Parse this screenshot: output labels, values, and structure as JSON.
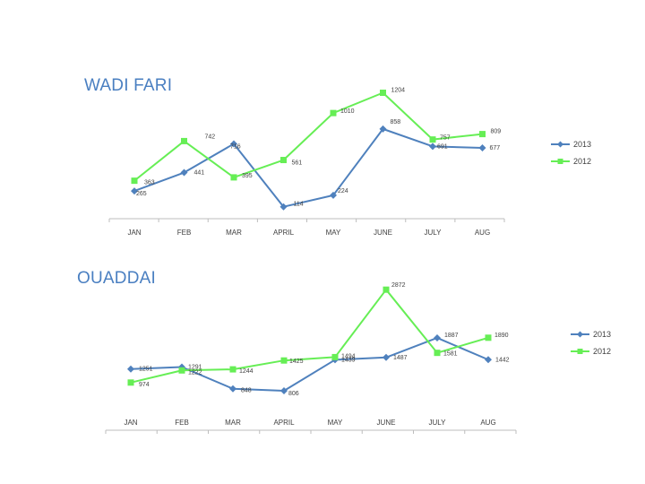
{
  "chart_data": [
    {
      "type": "line",
      "title": "WADI FARI",
      "categories": [
        "JAN",
        "FEB",
        "MAR",
        "APRIL",
        "MAY",
        "JUNE",
        "JULY",
        "AUG"
      ],
      "series": [
        {
          "name": "2013",
          "color": "#4f81bd",
          "marker": "diamond",
          "values": [
            265,
            441,
            716,
            114,
            224,
            858,
            691,
            677
          ]
        },
        {
          "name": "2012",
          "color": "#66ee55",
          "marker": "square",
          "values": [
            363,
            742,
            395,
            561,
            1010,
            1204,
            757,
            809
          ]
        }
      ],
      "xlabel": "",
      "ylabel": "",
      "ylim": [
        0,
        1350
      ],
      "grid": false,
      "legend": "right"
    },
    {
      "type": "line",
      "title": "OUADDAI",
      "categories": [
        "JAN",
        "FEB",
        "MAR",
        "APRIL",
        "MAY",
        "JUNE",
        "JULY",
        "AUG"
      ],
      "series": [
        {
          "name": "2013",
          "color": "#4f81bd",
          "marker": "diamond",
          "values": [
            1251,
            1291,
            848,
            806,
            1439,
            1487,
            1887,
            1442
          ]
        },
        {
          "name": "2012",
          "color": "#66ee55",
          "marker": "square",
          "values": [
            974,
            1222,
            1244,
            1425,
            1494,
            2872,
            1581,
            1890
          ]
        }
      ],
      "xlabel": "",
      "ylabel": "",
      "ylim": [
        0,
        3200
      ],
      "grid": false,
      "legend": "right"
    }
  ]
}
